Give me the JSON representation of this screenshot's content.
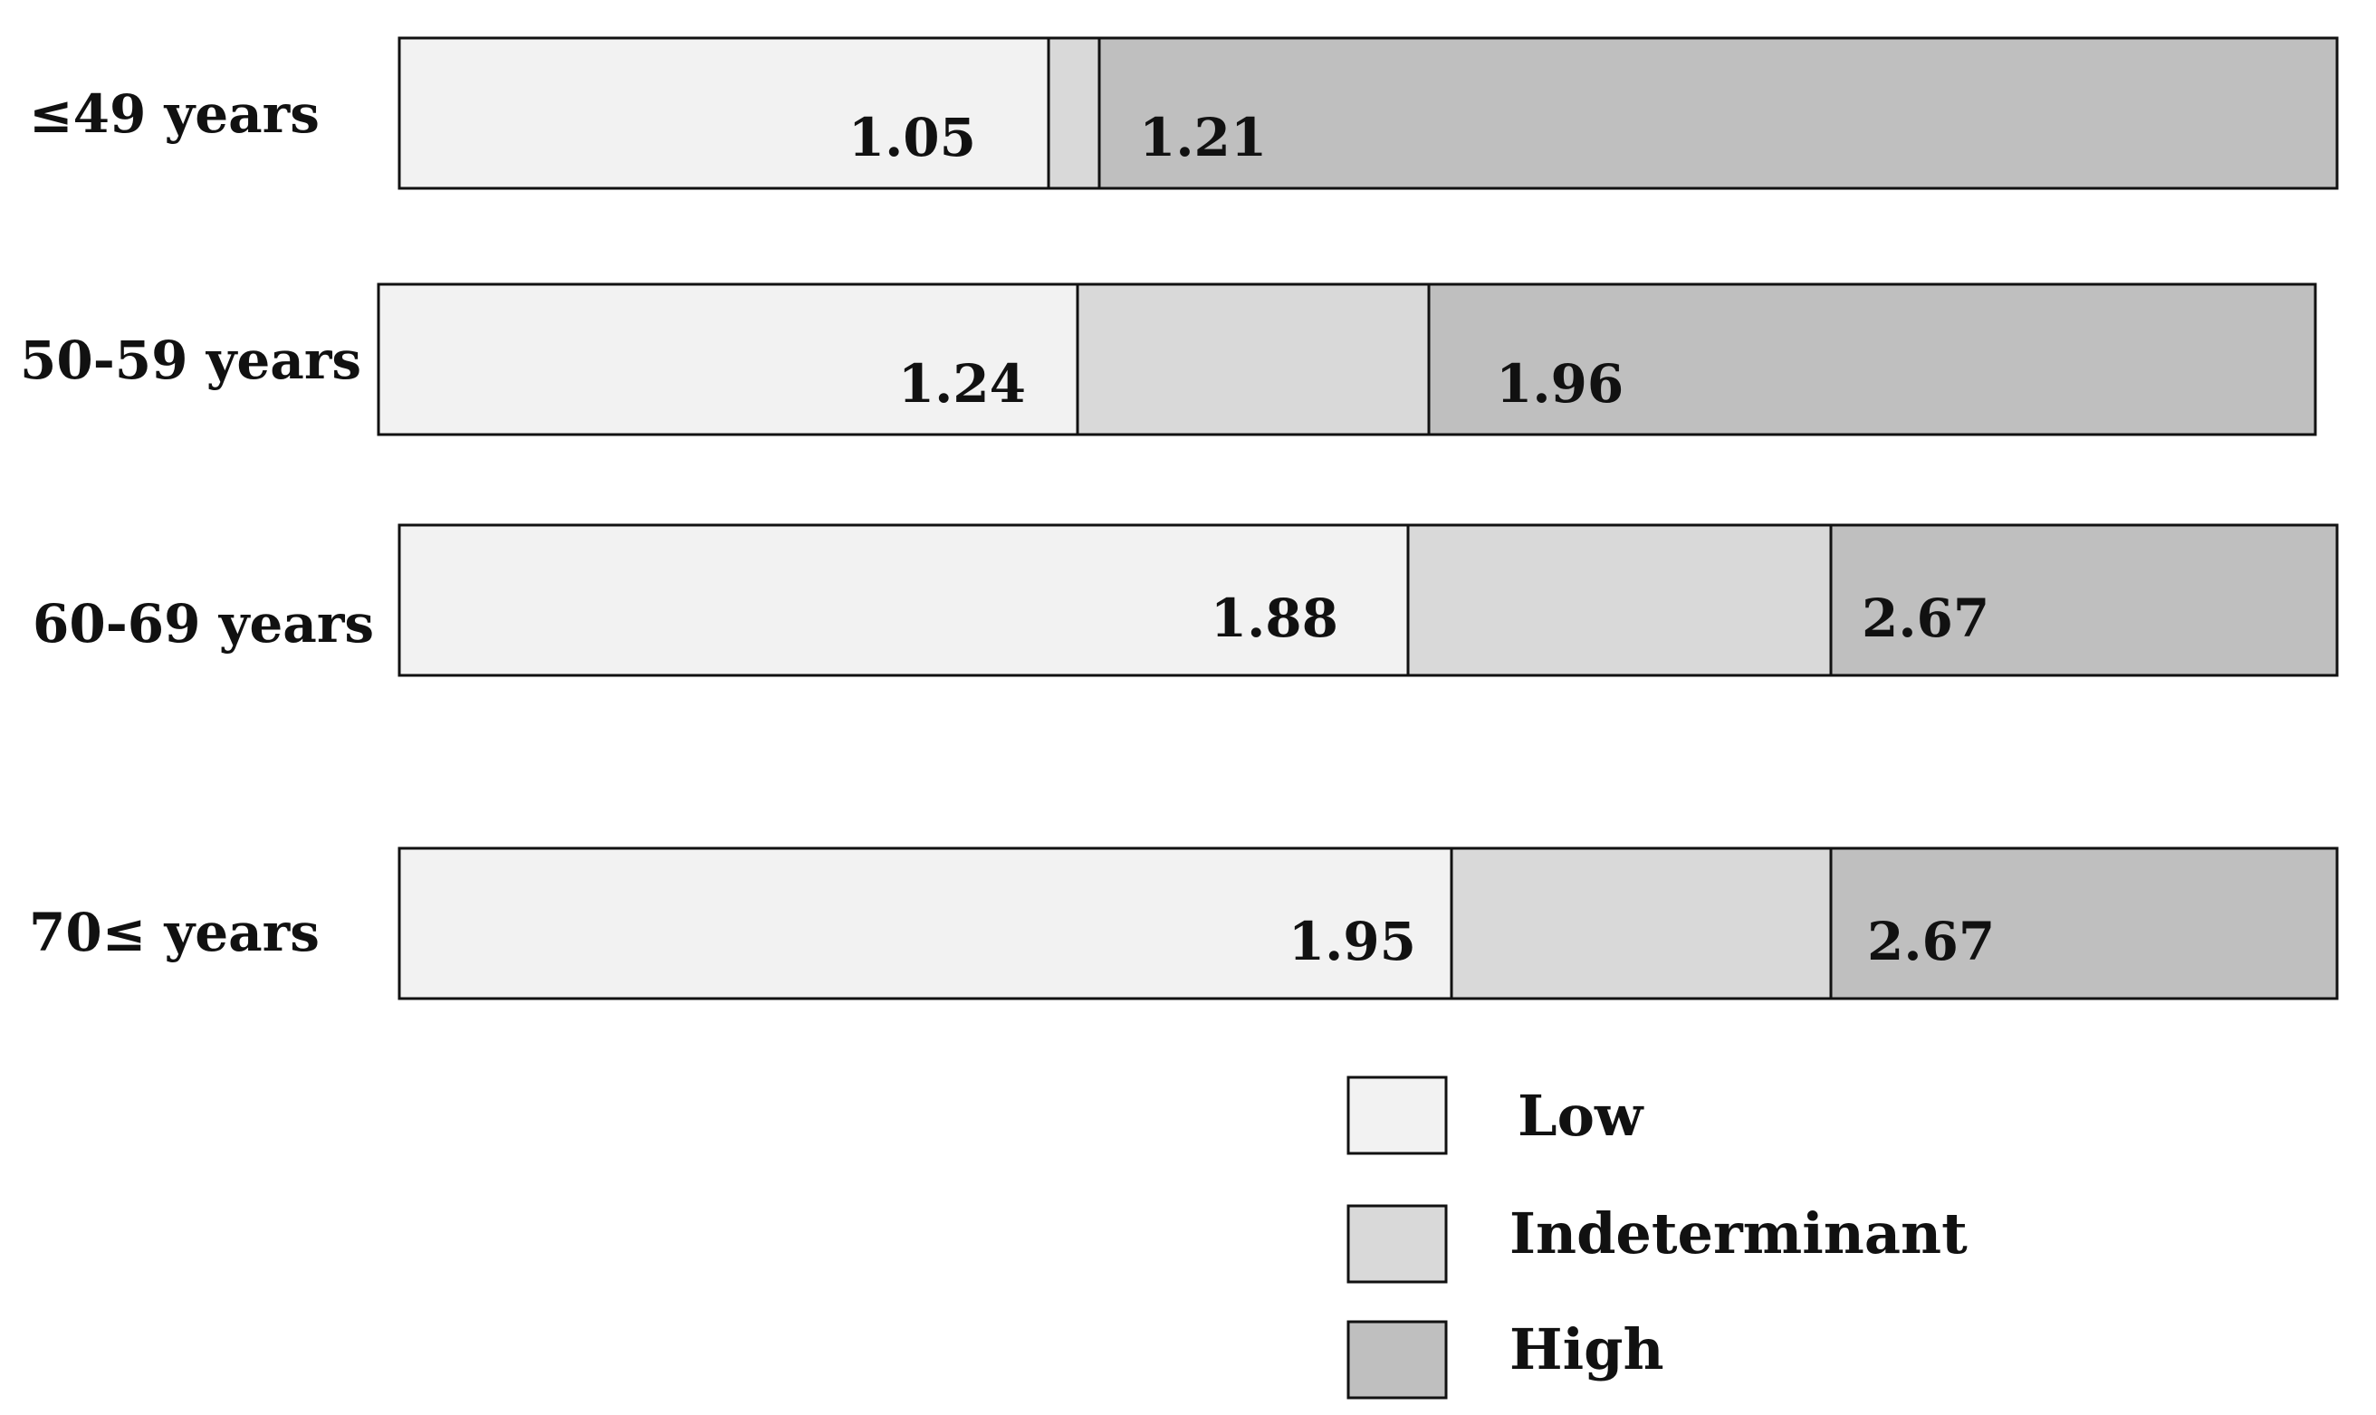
{
  "chart_data": {
    "type": "bar",
    "orientation": "horizontal",
    "stacked": true,
    "categories": [
      "≤49 years",
      "50-59 years",
      "60-69 years",
      "70≤ years"
    ],
    "series": [
      {
        "name": "Low",
        "color": "#f2f2f2"
      },
      {
        "name": "Indeterminant",
        "color": "#d9d9d9"
      },
      {
        "name": "High",
        "color": "#bfbfbf"
      }
    ],
    "cutoffs": [
      {
        "category": "≤49 years",
        "lower": 1.05,
        "upper": 1.21,
        "lower_label": "1.05",
        "upper_label": "1.21"
      },
      {
        "category": "50-59 years",
        "lower": 1.24,
        "upper": 1.96,
        "lower_label": "1.24",
        "upper_label": "1.96"
      },
      {
        "category": "60-69 years",
        "lower": 1.88,
        "upper": 2.67,
        "lower_label": "1.88",
        "upper_label": "2.67"
      },
      {
        "category": "70≤ years",
        "lower": 1.95,
        "upper": 2.67,
        "lower_label": "1.95",
        "upper_label": "2.67"
      }
    ],
    "legend_position": "bottom-center",
    "grid": false,
    "title": "",
    "xlabel": "",
    "ylabel": ""
  }
}
